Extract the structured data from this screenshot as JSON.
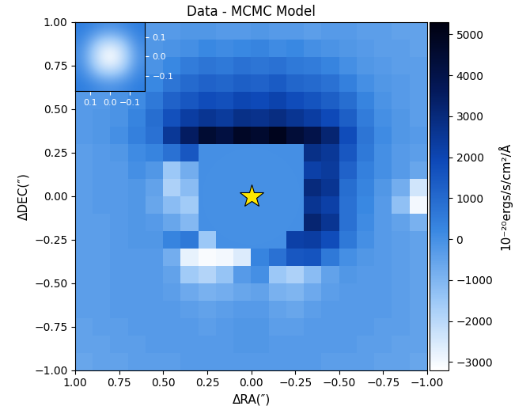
{
  "chart_data": [
    {
      "type": "heatmap",
      "title": "Data - MCMC Model",
      "x_label": "ΔRA(″)",
      "y_label": "ΔDEC(″)",
      "xlim": [
        1.0,
        -1.0
      ],
      "ylim": [
        -1.0,
        1.0
      ],
      "xticks": [
        {
          "value": 1.0,
          "label": "1.00"
        },
        {
          "value": 0.75,
          "label": "0.75"
        },
        {
          "value": 0.5,
          "label": "0.50"
        },
        {
          "value": 0.25,
          "label": "0.25"
        },
        {
          "value": 0.0,
          "label": "0.00"
        },
        {
          "value": -0.25,
          "label": "−0.25"
        },
        {
          "value": -0.5,
          "label": "−0.50"
        },
        {
          "value": -0.75,
          "label": "−0.75"
        },
        {
          "value": -1.0,
          "label": "−1.00"
        }
      ],
      "yticks": [
        {
          "value": -1.0,
          "label": "−1.00"
        },
        {
          "value": -0.75,
          "label": "−0.75"
        },
        {
          "value": -0.5,
          "label": "−0.50"
        },
        {
          "value": -0.25,
          "label": "−0.25"
        },
        {
          "value": 0.0,
          "label": "0.00"
        },
        {
          "value": 0.25,
          "label": "0.25"
        },
        {
          "value": 0.5,
          "label": "0.50"
        },
        {
          "value": 0.75,
          "label": "0.75"
        },
        {
          "value": 1.0,
          "label": "1.00"
        }
      ],
      "colorbar_label": "10⁻²⁰ergs/s/cm²/Å",
      "colorbar_range": [
        -3200,
        5300
      ],
      "colorbar_ticks": [
        {
          "value": -3000,
          "label": "−3000"
        },
        {
          "value": -2000,
          "label": "−2000"
        },
        {
          "value": -1000,
          "label": "−1000"
        },
        0,
        1000,
        2000,
        3000,
        4000,
        5000
      ],
      "mask": {
        "x": 0.0,
        "y": 0.0,
        "radius": 0.28,
        "value": 0
      },
      "star": {
        "x": 0.0,
        "y": 0.0
      },
      "cells": [
        [
          -500,
          -400,
          -400,
          -300,
          -300,
          -300,
          -200,
          -200,
          -300,
          -300,
          -200,
          -300,
          -300,
          -400,
          -300,
          -300,
          -400,
          -400,
          -500,
          -500
        ],
        [
          -400,
          -400,
          -300,
          -300,
          -200,
          -100,
          0,
          200,
          100,
          200,
          300,
          100,
          200,
          0,
          -100,
          -200,
          -300,
          -400,
          -400,
          -500
        ],
        [
          -400,
          -300,
          -300,
          -200,
          -100,
          200,
          500,
          700,
          600,
          800,
          700,
          800,
          600,
          500,
          300,
          0,
          -200,
          -300,
          -400,
          -400
        ],
        [
          -300,
          -300,
          -200,
          -100,
          200,
          700,
          1000,
          1200,
          1100,
          1300,
          1200,
          1400,
          1100,
          1000,
          800,
          400,
          0,
          -200,
          -300,
          -400
        ],
        [
          -300,
          -300,
          -100,
          100,
          600,
          1200,
          1500,
          1800,
          1700,
          2000,
          1900,
          2100,
          1800,
          1600,
          1300,
          900,
          300,
          -100,
          -300,
          -400
        ],
        [
          -300,
          -200,
          -100,
          300,
          900,
          1700,
          2300,
          2600,
          2400,
          2800,
          2700,
          2900,
          2600,
          2300,
          1900,
          1300,
          500,
          0,
          -200,
          -400
        ],
        [
          -300,
          -200,
          0,
          400,
          800,
          2500,
          3500,
          4500,
          4200,
          4800,
          4600,
          5000,
          4400,
          4000,
          3200,
          1800,
          700,
          100,
          -200,
          -300
        ],
        [
          -400,
          -300,
          -200,
          100,
          300,
          800,
          1500,
          0,
          0,
          0,
          0,
          0,
          0,
          2800,
          2500,
          1500,
          600,
          0,
          -300,
          -400
        ],
        [
          -400,
          -300,
          -300,
          0,
          -200,
          -1500,
          -800,
          0,
          0,
          0,
          0,
          0,
          0,
          2200,
          2400,
          1200,
          400,
          0,
          -300,
          -600
        ],
        [
          -400,
          -300,
          -300,
          -200,
          -500,
          -1800,
          -1200,
          0,
          0,
          0,
          0,
          0,
          0,
          3000,
          2600,
          900,
          300,
          -200,
          -800,
          -2400
        ],
        [
          -400,
          -300,
          -300,
          -200,
          -600,
          -1200,
          -1600,
          0,
          0,
          0,
          0,
          0,
          0,
          2600,
          2200,
          800,
          200,
          -300,
          -1300,
          -3000
        ],
        [
          -400,
          -400,
          -300,
          -200,
          -300,
          -600,
          -1100,
          0,
          0,
          0,
          0,
          0,
          0,
          3200,
          2600,
          800,
          100,
          -300,
          -500,
          -900
        ],
        [
          -400,
          -400,
          -300,
          -200,
          -200,
          300,
          600,
          -1500,
          0,
          0,
          0,
          0,
          2200,
          2300,
          1800,
          600,
          0,
          -300,
          -400,
          -500
        ],
        [
          -400,
          -400,
          -300,
          -300,
          -300,
          -800,
          -2800,
          -3100,
          -3000,
          -2600,
          300,
          800,
          1500,
          1600,
          600,
          0,
          -200,
          -300,
          -400,
          -500
        ],
        [
          -400,
          -400,
          -300,
          -300,
          -300,
          -500,
          -1600,
          -1900,
          -1400,
          -300,
          0,
          -1500,
          -1800,
          -1200,
          -500,
          -200,
          -300,
          -300,
          -400,
          -500
        ],
        [
          -400,
          -400,
          -300,
          -300,
          -300,
          -400,
          -700,
          -900,
          -800,
          -600,
          -500,
          -900,
          -1000,
          -700,
          -400,
          -300,
          -300,
          -300,
          -400,
          -500
        ],
        [
          -400,
          -400,
          -300,
          -300,
          -300,
          -300,
          -400,
          -500,
          -400,
          -300,
          -300,
          -500,
          -600,
          -400,
          -300,
          -300,
          -300,
          -300,
          -400,
          -500
        ],
        [
          -500,
          -400,
          -400,
          -300,
          -300,
          -300,
          -300,
          -400,
          -300,
          -200,
          -200,
          -400,
          -400,
          -300,
          -300,
          -300,
          -300,
          -400,
          -400,
          -500
        ],
        [
          -500,
          -500,
          -400,
          -400,
          -300,
          -300,
          -300,
          -300,
          -300,
          -200,
          -200,
          -300,
          -300,
          -300,
          -300,
          -300,
          -400,
          -400,
          -500,
          -500
        ],
        [
          -600,
          -500,
          -500,
          -400,
          -400,
          -400,
          -300,
          -300,
          -300,
          -300,
          -300,
          -300,
          -300,
          -300,
          -400,
          -400,
          -400,
          -500,
          -500,
          -600
        ]
      ]
    },
    {
      "type": "heatmap",
      "xlim": [
        0.175,
        -0.175
      ],
      "ylim": [
        -0.175,
        0.175
      ],
      "xticks": [
        0.1,
        0.0,
        {
          "value": -0.1,
          "label": "−0.1"
        }
      ],
      "yticks": [
        {
          "value": -0.1,
          "label": "−0.1"
        },
        0.0,
        0.1
      ],
      "cells": [
        [
          0.02,
          0.06,
          0.12,
          0.15,
          0.12,
          0.06,
          0.02
        ],
        [
          0.06,
          0.2,
          0.38,
          0.45,
          0.38,
          0.2,
          0.06
        ],
        [
          0.12,
          0.38,
          0.7,
          0.82,
          0.7,
          0.38,
          0.12
        ],
        [
          0.15,
          0.45,
          0.82,
          1.0,
          0.82,
          0.45,
          0.15
        ],
        [
          0.12,
          0.38,
          0.7,
          0.82,
          0.7,
          0.38,
          0.12
        ],
        [
          0.06,
          0.2,
          0.38,
          0.45,
          0.38,
          0.2,
          0.06
        ],
        [
          0.02,
          0.06,
          0.12,
          0.15,
          0.12,
          0.06,
          0.02
        ]
      ]
    }
  ]
}
